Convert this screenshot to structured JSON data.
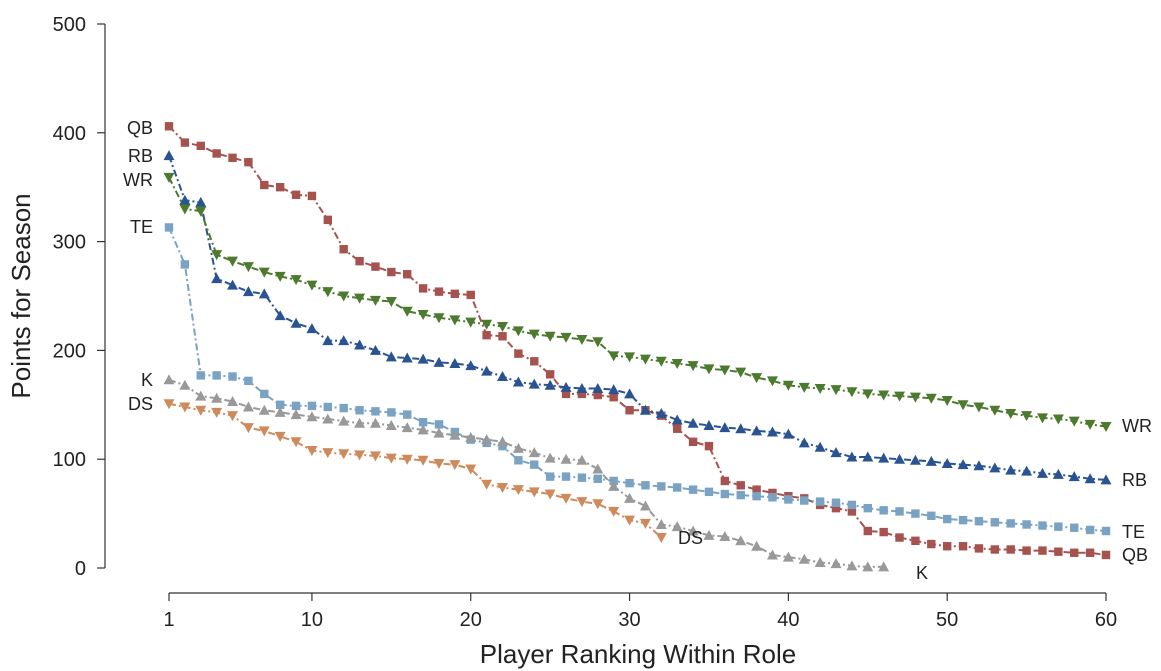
{
  "chart_data": {
    "type": "line",
    "title": "",
    "xlabel": "Player Ranking Within Role",
    "ylabel": "Points for Season",
    "xlim": [
      1,
      60
    ],
    "ylim": [
      0,
      500
    ],
    "x_ticks": [
      1,
      10,
      20,
      30,
      40,
      50,
      60
    ],
    "y_ticks": [
      0,
      100,
      200,
      300,
      400,
      500
    ],
    "grid": false,
    "legend": "none (series labeled at line ends)",
    "series": [
      {
        "name": "QB",
        "color": "#a6524f",
        "marker": "square",
        "values": [
          406,
          391,
          388,
          381,
          377,
          373,
          352,
          350,
          343,
          342,
          320,
          293,
          282,
          277,
          272,
          270,
          257,
          254,
          252,
          251,
          214,
          213,
          197,
          190,
          178,
          160,
          160,
          159,
          157,
          145,
          145,
          140,
          128,
          116,
          112,
          80,
          76,
          72,
          69,
          66,
          64,
          58,
          55,
          52,
          34,
          33,
          28,
          25,
          22,
          20,
          20,
          18,
          17,
          17,
          16,
          16,
          15,
          14,
          14,
          12
        ]
      },
      {
        "name": "RB",
        "color": "#2a5391",
        "marker": "triangle-up",
        "values": [
          379,
          338,
          336,
          266,
          260,
          254,
          252,
          232,
          225,
          220,
          209,
          209,
          205,
          200,
          194,
          193,
          192,
          189,
          188,
          186,
          181,
          176,
          171,
          169,
          168,
          166,
          165,
          165,
          164,
          160,
          145,
          142,
          136,
          133,
          131,
          129,
          128,
          126,
          125,
          123,
          115,
          111,
          106,
          102,
          102,
          101,
          100,
          99,
          98,
          96,
          95,
          94,
          92,
          90,
          89,
          87,
          86,
          84,
          82,
          81
        ]
      },
      {
        "name": "WR",
        "color": "#4c7a2e",
        "marker": "triangle-down",
        "values": [
          359,
          330,
          328,
          288,
          282,
          277,
          272,
          268,
          265,
          260,
          254,
          250,
          248,
          246,
          245,
          236,
          233,
          230,
          228,
          226,
          224,
          222,
          218,
          215,
          213,
          212,
          210,
          208,
          195,
          194,
          192,
          190,
          188,
          186,
          183,
          182,
          180,
          175,
          172,
          168,
          166,
          165,
          164,
          162,
          160,
          159,
          158,
          157,
          156,
          154,
          150,
          148,
          145,
          142,
          140,
          138,
          137,
          135,
          132,
          130
        ]
      },
      {
        "name": "TE",
        "color": "#7aa2c2",
        "marker": "square",
        "values": [
          313,
          279,
          177,
          177,
          176,
          172,
          160,
          150,
          149,
          149,
          148,
          147,
          145,
          144,
          143,
          141,
          134,
          132,
          125,
          118,
          115,
          112,
          99,
          95,
          84,
          84,
          83,
          82,
          80,
          78,
          76,
          75,
          74,
          72,
          70,
          68,
          67,
          66,
          65,
          63,
          62,
          61,
          60,
          58,
          55,
          53,
          52,
          50,
          48,
          45,
          44,
          43,
          42,
          41,
          40,
          39,
          38,
          37,
          35,
          34
        ]
      },
      {
        "name": "K",
        "color": "#999999",
        "marker": "triangle-up",
        "values": [
          173,
          168,
          158,
          156,
          153,
          148,
          145,
          143,
          141,
          139,
          137,
          135,
          133,
          133,
          131,
          129,
          127,
          124,
          122,
          120,
          118,
          116,
          110,
          106,
          101,
          100,
          99,
          91,
          75,
          64,
          57,
          40,
          38,
          34,
          30,
          29,
          25,
          20,
          12,
          10,
          8,
          5,
          4,
          2,
          1,
          1
        ]
      },
      {
        "name": "DS",
        "color": "#cf8a5c",
        "marker": "triangle-down",
        "values": [
          151,
          148,
          145,
          143,
          140,
          129,
          126,
          121,
          116,
          108,
          106,
          105,
          104,
          103,
          101,
          100,
          99,
          96,
          95,
          91,
          77,
          74,
          72,
          70,
          68,
          64,
          61,
          59,
          52,
          44,
          41,
          28
        ]
      }
    ]
  },
  "end_labels": {
    "left": {
      "QB": "QB",
      "RB": "RB",
      "WR": "WR",
      "TE": "TE",
      "K": "K",
      "DS": "DS"
    },
    "right": {
      "WR": "WR",
      "RB": "RB",
      "TE": "TE",
      "QB": "QB",
      "DS": "DS",
      "K": "K"
    }
  }
}
